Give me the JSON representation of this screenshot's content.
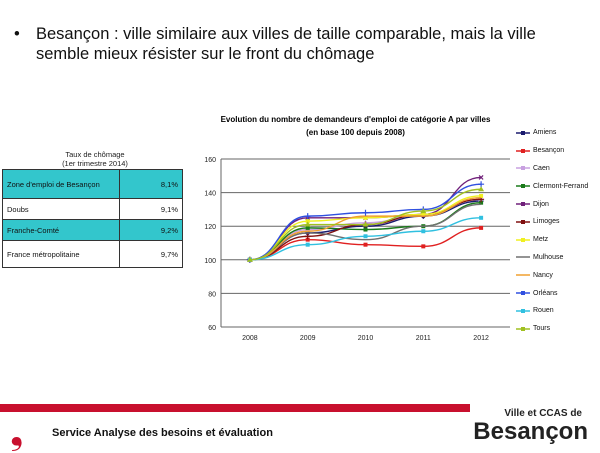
{
  "slide": {
    "bullet": "•",
    "text": "Besançon : ville similaire aux villes de taille comparable, mais la ville semble mieux résister sur le front du chômage"
  },
  "table": {
    "title1": "Taux de chômage",
    "title2": "(1er trimestre 2014)",
    "rows": [
      {
        "label": "Zone d'emploi de Besançon",
        "value": "8,1%"
      },
      {
        "label": "Doubs",
        "value": "9,1%"
      },
      {
        "label": "Franche-Comté",
        "value": "9,2%"
      },
      {
        "label": "France métropolitaine",
        "value": "9,7%"
      }
    ]
  },
  "footer": {
    "text": "Service Analyse des besoins et évaluation",
    "brand_small": "Ville et CCAS de",
    "brand_big": "Besançon"
  },
  "chart_data": {
    "type": "line",
    "title": "Evolution du nombre de demandeurs d'emploi de catégorie A par villes",
    "subtitle": "(en base 100 depuis 2008)",
    "categories": [
      "2008",
      "2009",
      "2010",
      "2011",
      "2012"
    ],
    "ylim": [
      60,
      160
    ],
    "yticks": [
      60,
      80,
      100,
      120,
      140,
      160
    ],
    "grid": true,
    "legend": "right",
    "series": [
      {
        "name": "Amiens",
        "color": "#1a1a6e",
        "marker": "diamond",
        "values": [
          100,
          116,
          120,
          126,
          135
        ]
      },
      {
        "name": "Besançon",
        "color": "#e02020",
        "marker": "square",
        "values": [
          100,
          112,
          109,
          108,
          119
        ]
      },
      {
        "name": "Caen",
        "color": "#c8a0e0",
        "marker": "triangle",
        "values": [
          100,
          118,
          122,
          127,
          136
        ]
      },
      {
        "name": "Clermont-Ferrand",
        "color": "#1a7a1a",
        "marker": "square",
        "values": [
          100,
          119,
          118,
          120,
          134
        ]
      },
      {
        "name": "Dijon",
        "color": "#70207a",
        "marker": "x",
        "values": [
          100,
          125,
          125,
          127,
          149
        ]
      },
      {
        "name": "Limoges",
        "color": "#801010",
        "marker": "star",
        "values": [
          100,
          114,
          121,
          127,
          136
        ]
      },
      {
        "name": "Metz",
        "color": "#f0f020",
        "marker": "square",
        "values": [
          100,
          123,
          125,
          127,
          138
        ]
      },
      {
        "name": "Mulhouse",
        "color": "#707070",
        "marker": "none",
        "values": [
          100,
          116,
          112,
          120,
          133
        ]
      },
      {
        "name": "Nancy",
        "color": "#f0a030",
        "marker": "none",
        "values": [
          100,
          117,
          126,
          126,
          137
        ]
      },
      {
        "name": "Orléans",
        "color": "#3050e0",
        "marker": "star",
        "values": [
          100,
          126,
          128,
          130,
          145
        ]
      },
      {
        "name": "Rouen",
        "color": "#30c0e0",
        "marker": "square",
        "values": [
          100,
          109,
          114,
          117,
          125
        ]
      },
      {
        "name": "Tours",
        "color": "#a0c020",
        "marker": "triangle",
        "values": [
          100,
          121,
          121,
          129,
          142
        ]
      }
    ]
  }
}
